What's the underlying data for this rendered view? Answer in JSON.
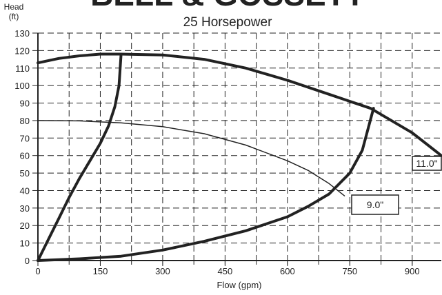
{
  "chart_data": {
    "type": "line",
    "title": "BELL & GOSSETT",
    "subtitle": "25 Horsepower",
    "xlabel": "Flow (gpm)",
    "ylabel": [
      "Head",
      "(ft)"
    ],
    "xlim": [
      0,
      970
    ],
    "ylim": [
      0,
      130
    ],
    "xticks": [
      0,
      150,
      300,
      450,
      600,
      750,
      900
    ],
    "yticks": [
      0,
      10,
      20,
      30,
      40,
      50,
      60,
      70,
      80,
      90,
      100,
      110,
      120,
      130
    ],
    "xgrid": [
      75,
      150,
      225,
      300,
      375,
      450,
      525,
      600,
      675,
      750,
      825,
      900
    ],
    "grid": true,
    "series": [
      {
        "name": "11.0\"",
        "color": "#222",
        "width": 4,
        "x": [
          0,
          50,
          100,
          150,
          200,
          300,
          400,
          500,
          600,
          700,
          800,
          900,
          970
        ],
        "values": [
          113,
          115.5,
          117,
          118,
          118,
          117.5,
          115,
          110,
          103,
          95,
          87,
          73,
          60
        ]
      },
      {
        "name": "9.0\"",
        "color": "#222",
        "width": 1.5,
        "x": [
          0,
          100,
          200,
          300,
          400,
          500,
          600,
          650,
          700,
          737
        ],
        "values": [
          80,
          79.8,
          78.7,
          76.5,
          72.5,
          66,
          57,
          51.5,
          44,
          37
        ]
      },
      {
        "color": "#222",
        "width": 4,
        "x": [
          0,
          25,
          50,
          75,
          100,
          125,
          150,
          170,
          185,
          195,
          200
        ],
        "values": [
          0,
          12,
          24,
          36,
          47,
          57,
          67,
          77,
          88,
          100,
          118
        ]
      },
      {
        "color": "#222",
        "width": 4,
        "x": [
          0,
          100,
          200,
          300,
          400,
          500,
          600,
          650,
          700,
          750,
          780,
          807
        ],
        "values": [
          0,
          1,
          2.5,
          6,
          11,
          17,
          25,
          31,
          38,
          50,
          63,
          87
        ]
      }
    ]
  }
}
